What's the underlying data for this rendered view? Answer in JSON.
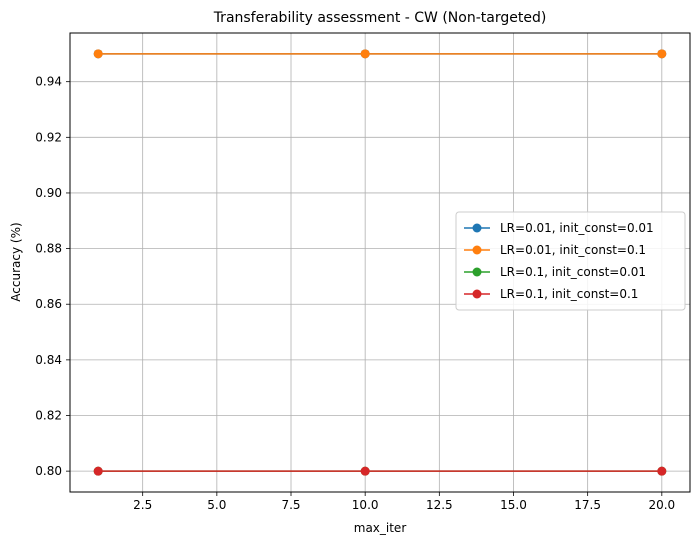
{
  "chart_data": {
    "type": "line",
    "title": "Transferability assessment - CW (Non-targeted)",
    "xlabel": "max_iter",
    "ylabel": "Accuracy (%)",
    "xlim": [
      0.05,
      20.95
    ],
    "ylim": [
      0.7925,
      0.9575
    ],
    "xticks": [
      2.5,
      5.0,
      7.5,
      10.0,
      12.5,
      15.0,
      17.5,
      20.0
    ],
    "xtick_labels": [
      "2.5",
      "5.0",
      "7.5",
      "10.0",
      "12.5",
      "15.0",
      "17.5",
      "20.0"
    ],
    "yticks": [
      0.8,
      0.82,
      0.84,
      0.86,
      0.88,
      0.9,
      0.92,
      0.94
    ],
    "ytick_labels": [
      "0.80",
      "0.82",
      "0.84",
      "0.86",
      "0.88",
      "0.90",
      "0.92",
      "0.94"
    ],
    "grid": true,
    "legend_position": "center-right",
    "x": [
      1,
      10,
      20
    ],
    "series": [
      {
        "name": "LR=0.01, init_const=0.01",
        "values": [
          0.95,
          0.95,
          0.95
        ],
        "color": "#1f77b4"
      },
      {
        "name": "LR=0.01, init_const=0.1",
        "values": [
          0.95,
          0.95,
          0.95
        ],
        "color": "#ff7f0e"
      },
      {
        "name": "LR=0.1, init_const=0.01",
        "values": [
          0.8,
          0.8,
          0.8
        ],
        "color": "#2ca02c"
      },
      {
        "name": "LR=0.1, init_const=0.1",
        "values": [
          0.8,
          0.8,
          0.8
        ],
        "color": "#d62728"
      }
    ]
  }
}
